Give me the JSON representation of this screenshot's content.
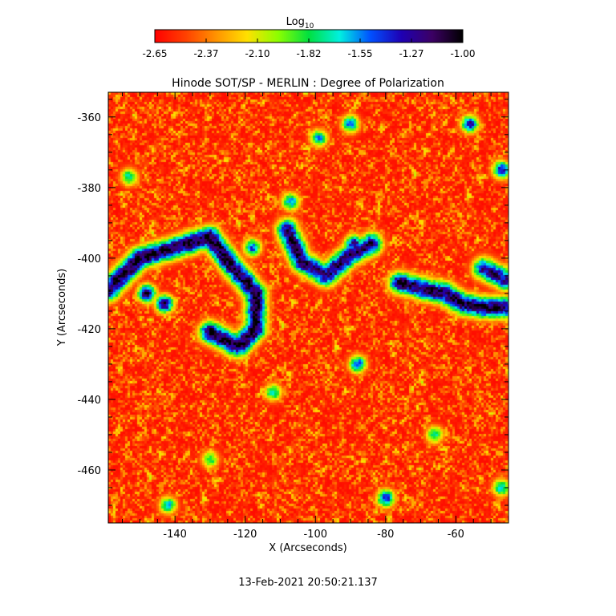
{
  "chart_data": {
    "type": "heatmap",
    "title": "Hinode SOT/SP - MERLIN : Degree of Polarization",
    "xlabel": "X (Arcseconds)",
    "ylabel": "Y (Arcseconds)",
    "x_ticks": [
      -140,
      -120,
      -100,
      -80,
      -60
    ],
    "y_ticks": [
      -360,
      -380,
      -400,
      -420,
      -440,
      -460
    ],
    "xlim": [
      -159,
      -45
    ],
    "ylim": [
      -475,
      -353
    ],
    "colorbar": {
      "label": "Log",
      "label_subscript": "10",
      "ticks": [
        "-2.65",
        "-2.37",
        "-2.10",
        "-1.82",
        "-1.55",
        "-1.27",
        "-1.00"
      ],
      "range": [
        -2.65,
        -1.0
      ],
      "colormap": [
        "#ff0000",
        "#ff4000",
        "#ff9400",
        "#ffe000",
        "#8cff00",
        "#00e040",
        "#00f0e0",
        "#0050ff",
        "#1e00b4",
        "#3c0064",
        "#000000"
      ]
    },
    "field_structure": {
      "background_level": -2.62,
      "granular_noise": 0.3,
      "network_ridges": [
        {
          "path": [
            [
              -159,
              -409
            ],
            [
              -150,
              -400
            ],
            [
              -140,
              -397
            ],
            [
              -130,
              -394
            ],
            [
              -124,
              -402
            ],
            [
              -117,
              -410
            ],
            [
              -117,
              -420
            ],
            [
              -122,
              -425
            ],
            [
              -130,
              -421
            ]
          ],
          "peak": -1.05
        },
        {
          "path": [
            [
              -108,
              -392
            ],
            [
              -104,
              -401
            ],
            [
              -97,
              -405
            ],
            [
              -90,
              -399
            ],
            [
              -84,
              -396
            ]
          ],
          "peak": -1.15
        },
        {
          "path": [
            [
              -76,
              -407
            ],
            [
              -68,
              -409
            ],
            [
              -63,
              -410
            ],
            [
              -58,
              -413
            ],
            [
              -52,
              -414
            ],
            [
              -46,
              -414
            ]
          ],
          "peak": -1.1
        },
        {
          "path": [
            [
              -52,
              -403
            ],
            [
              -46,
              -406
            ]
          ],
          "peak": -1.2
        }
      ],
      "network_spots": [
        {
          "x": -148,
          "y": -410,
          "peak": -1.0
        },
        {
          "x": -143,
          "y": -413,
          "peak": -1.05
        },
        {
          "x": -64,
          "y": -410,
          "peak": -1.0
        },
        {
          "x": -89,
          "y": -396,
          "peak": -1.1
        },
        {
          "x": -56,
          "y": -362,
          "peak": -1.3
        },
        {
          "x": -47,
          "y": -375,
          "peak": -1.3
        },
        {
          "x": -90,
          "y": -362,
          "peak": -1.5
        },
        {
          "x": -118,
          "y": -397,
          "peak": -1.4
        },
        {
          "x": -99,
          "y": -366,
          "peak": -1.6
        },
        {
          "x": -80,
          "y": -468,
          "peak": -1.3
        },
        {
          "x": -88,
          "y": -430,
          "peak": -1.4
        },
        {
          "x": -142,
          "y": -470,
          "peak": -1.6
        },
        {
          "x": -153,
          "y": -377,
          "peak": -1.7
        },
        {
          "x": -107,
          "y": -384,
          "peak": -1.5
        },
        {
          "x": -66,
          "y": -450,
          "peak": -1.7
        },
        {
          "x": -112,
          "y": -438,
          "peak": -1.7
        },
        {
          "x": -130,
          "y": -457,
          "peak": -1.8
        },
        {
          "x": -47,
          "y": -465,
          "peak": -1.6
        }
      ]
    }
  },
  "timestamp": "13-Feb-2021 20:50:21.137"
}
